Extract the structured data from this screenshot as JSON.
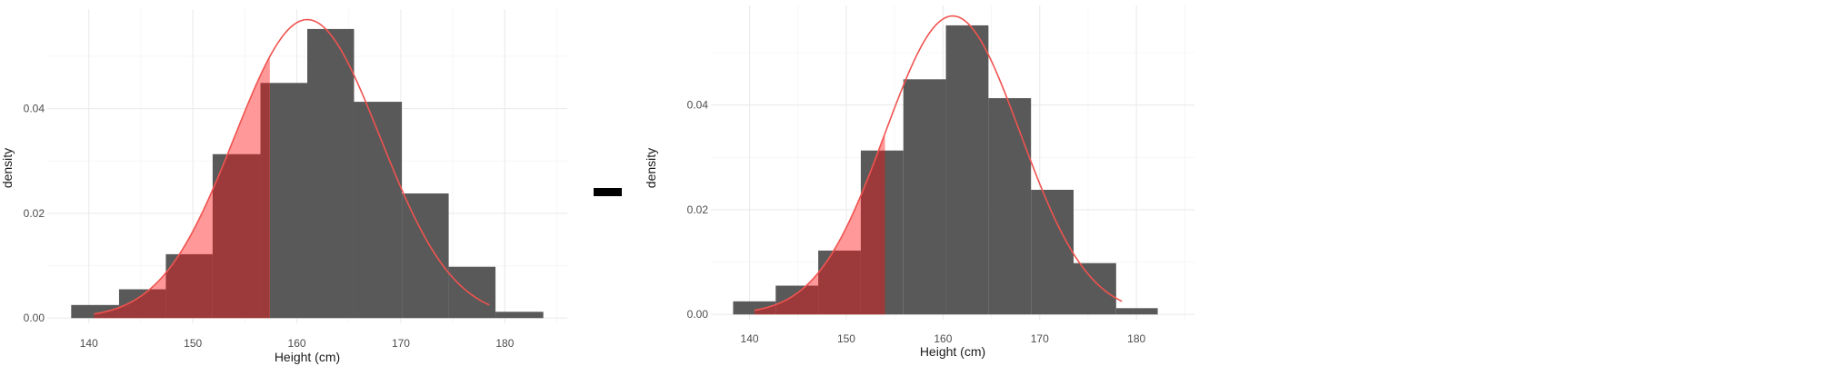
{
  "operator": "−",
  "colors": {
    "bar": "#595959",
    "curve": "#f0534f",
    "shade_light": "#ff9999",
    "shade_dark": "#9c3a3b",
    "grid": "#ebebeb"
  },
  "chart_data": [
    {
      "type": "bar",
      "xlabel": "Height (cm)",
      "ylabel": "density",
      "xlim": [
        136,
        186
      ],
      "ylim": [
        -0.001,
        0.059
      ],
      "x_ticks": [
        140,
        150,
        160,
        170,
        180
      ],
      "y_ticks": [
        0.0,
        0.02,
        0.04
      ],
      "x_tick_labels": [
        "140",
        "150",
        "160",
        "170",
        "180"
      ],
      "y_tick_labels": [
        "0.00",
        "0.02",
        "0.04"
      ],
      "grid": true,
      "bins": [
        {
          "x0": 138.3,
          "x1": 142.9,
          "density": 0.0025
        },
        {
          "x0": 142.9,
          "x1": 147.4,
          "density": 0.0055
        },
        {
          "x0": 147.4,
          "x1": 151.9,
          "density": 0.0122
        },
        {
          "x0": 151.9,
          "x1": 156.5,
          "density": 0.0313
        },
        {
          "x0": 156.5,
          "x1": 161.0,
          "density": 0.0449
        },
        {
          "x0": 161.0,
          "x1": 165.5,
          "density": 0.0552
        },
        {
          "x0": 165.5,
          "x1": 170.1,
          "density": 0.0413
        },
        {
          "x0": 170.1,
          "x1": 174.6,
          "density": 0.0238
        },
        {
          "x0": 174.6,
          "x1": 179.1,
          "density": 0.0098
        },
        {
          "x0": 179.1,
          "x1": 183.7,
          "density": 0.0012
        }
      ],
      "normal_curve": {
        "mean": 161,
        "sd": 7,
        "x_range": [
          140.5,
          178.5
        ]
      },
      "shaded_below": 157.4
    },
    {
      "type": "bar",
      "xlabel": "Height (cm)",
      "ylabel": "density",
      "xlim": [
        136,
        186
      ],
      "ylim": [
        -0.001,
        0.059
      ],
      "x_ticks": [
        140,
        150,
        160,
        170,
        180
      ],
      "y_ticks": [
        0.0,
        0.02,
        0.04
      ],
      "x_tick_labels": [
        "140",
        "150",
        "160",
        "170",
        "180"
      ],
      "y_tick_labels": [
        "0.00",
        "0.02",
        "0.04"
      ],
      "grid": true,
      "bins": [
        {
          "x0": 138.3,
          "x1": 142.7,
          "density": 0.0025
        },
        {
          "x0": 142.7,
          "x1": 147.1,
          "density": 0.0055
        },
        {
          "x0": 147.1,
          "x1": 151.5,
          "density": 0.0122
        },
        {
          "x0": 151.5,
          "x1": 155.9,
          "density": 0.0313
        },
        {
          "x0": 155.9,
          "x1": 160.3,
          "density": 0.0449
        },
        {
          "x0": 160.3,
          "x1": 164.7,
          "density": 0.0552
        },
        {
          "x0": 164.7,
          "x1": 169.1,
          "density": 0.0413
        },
        {
          "x0": 169.1,
          "x1": 173.5,
          "density": 0.0238
        },
        {
          "x0": 173.5,
          "x1": 177.9,
          "density": 0.0098
        },
        {
          "x0": 177.9,
          "x1": 182.2,
          "density": 0.0012
        }
      ],
      "normal_curve": {
        "mean": 161,
        "sd": 7,
        "x_range": [
          140.5,
          178.5
        ]
      },
      "shaded_below": 154
    }
  ]
}
